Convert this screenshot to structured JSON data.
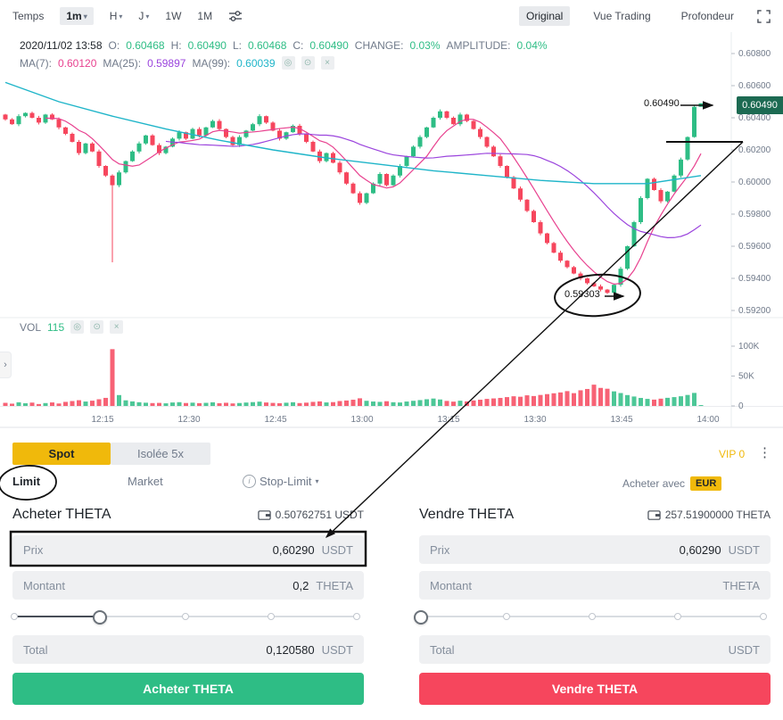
{
  "toolbar": {
    "time_label": "Temps",
    "intervals": [
      "1m",
      "H",
      "J",
      "1W",
      "1M"
    ],
    "view_tabs": [
      "Original",
      "Vue Trading",
      "Profondeur"
    ]
  },
  "ohlc": {
    "datetime": "2020/11/02 13:58",
    "o_label": "O:",
    "o_value": "0.60468",
    "h_label": "H:",
    "h_value": "0.60490",
    "l_label": "L:",
    "l_value": "0.60468",
    "c_label": "C:",
    "c_value": "0.60490",
    "change_label": "CHANGE:",
    "change_value": "0.03%",
    "amplitude_label": "AMPLITUDE:",
    "amplitude_value": "0.04%"
  },
  "ma_legend": {
    "ma7_label": "MA(7):",
    "ma7_value": "0.60120",
    "ma25_label": "MA(25):",
    "ma25_value": "0.59897",
    "ma99_label": "MA(99):",
    "ma99_value": "0.60039"
  },
  "vol_legend": {
    "label": "VOL",
    "value": "115"
  },
  "annotations": {
    "current_price": "0.60490",
    "current_price_badge": "0.60490",
    "marked_low": "0.59303"
  },
  "chart_data": {
    "type": "candlestick",
    "interval": "1m",
    "first_open": 0.6042,
    "closes": [
      0.6039,
      0.6036,
      0.6041,
      0.6043,
      0.604,
      0.6037,
      0.6042,
      0.6039,
      0.6034,
      0.603,
      0.6025,
      0.6018,
      0.6024,
      0.6019,
      0.601,
      0.6004,
      0.5998,
      0.6006,
      0.6013,
      0.6019,
      0.6024,
      0.6029,
      0.6023,
      0.6018,
      0.6022,
      0.6027,
      0.6031,
      0.6027,
      0.6033,
      0.6029,
      0.6034,
      0.6038,
      0.6033,
      0.6028,
      0.6023,
      0.6028,
      0.6032,
      0.6036,
      0.6041,
      0.6037,
      0.6032,
      0.6027,
      0.6031,
      0.6035,
      0.603,
      0.6025,
      0.6019,
      0.6013,
      0.6018,
      0.6012,
      0.6006,
      0.5999,
      0.5993,
      0.5987,
      0.5993,
      0.5999,
      0.6005,
      0.5998,
      0.6004,
      0.601,
      0.6016,
      0.6022,
      0.6028,
      0.6034,
      0.604,
      0.6044,
      0.604,
      0.6036,
      0.6042,
      0.6038,
      0.6033,
      0.6028,
      0.6022,
      0.6016,
      0.601,
      0.6003,
      0.5996,
      0.5989,
      0.5982,
      0.5975,
      0.5968,
      0.5962,
      0.5956,
      0.5951,
      0.5947,
      0.5943,
      0.594,
      0.5937,
      0.5935,
      0.5933,
      0.5931,
      0.5936,
      0.5946,
      0.596,
      0.5975,
      0.599,
      0.6002,
      0.5995,
      0.5988,
      0.5994,
      0.6004,
      0.6014,
      0.6028,
      0.60468,
      0.6049
    ],
    "volumes": [
      5200,
      3800,
      6100,
      4500,
      5600,
      3200,
      4800,
      5900,
      4100,
      6800,
      8200,
      9600,
      7400,
      8800,
      11200,
      13500,
      95000,
      18200,
      9400,
      7600,
      6200,
      5400,
      4800,
      5100,
      4400,
      5800,
      6300,
      4900,
      5500,
      4700,
      5200,
      6100,
      4600,
      5300,
      4200,
      4900,
      5700,
      6400,
      7200,
      5800,
      5100,
      4600,
      5400,
      6200,
      4800,
      5500,
      6800,
      7600,
      5900,
      6400,
      8200,
      9100,
      10400,
      12800,
      8600,
      7400,
      6800,
      7900,
      6200,
      5800,
      7400,
      8600,
      9800,
      11200,
      12400,
      10800,
      8400,
      7200,
      8800,
      7600,
      9200,
      10400,
      11800,
      12600,
      13400,
      14800,
      16200,
      15400,
      17800,
      16600,
      18400,
      19800,
      21200,
      22600,
      24800,
      21400,
      26200,
      28400,
      35600,
      30200,
      28800,
      24400,
      21600,
      18200,
      15800,
      13400,
      11800,
      10600,
      12200,
      13600,
      14800,
      16200,
      18400,
      21800,
      115
    ],
    "wick_overrides": {
      "16": {
        "low": 0.595
      },
      "90": {
        "low": 0.59303
      },
      "104": {
        "high": 0.6049,
        "low": 0.60468
      }
    },
    "ma99_points": [
      [
        0,
        0.6062
      ],
      [
        8,
        0.605
      ],
      [
        16,
        0.6041
      ],
      [
        24,
        0.6033
      ],
      [
        32,
        0.6026
      ],
      [
        40,
        0.602
      ],
      [
        48,
        0.6015
      ],
      [
        56,
        0.6011
      ],
      [
        64,
        0.6007
      ],
      [
        72,
        0.6004
      ],
      [
        80,
        0.6001
      ],
      [
        88,
        0.5999
      ],
      [
        96,
        0.5999
      ],
      [
        104,
        0.6004
      ]
    ],
    "y_axis": [
      "0.60800",
      "0.60600",
      "0.60400",
      "0.60200",
      "0.60000",
      "0.59800",
      "0.59600",
      "0.59400",
      "0.59200"
    ],
    "vol_axis": [
      "100K",
      "50K",
      "0"
    ],
    "x_axis": [
      "12:15",
      "12:30",
      "12:45",
      "13:00",
      "13:15",
      "13:30",
      "13:45",
      "14:00"
    ],
    "colors": {
      "up": "#2EBD85",
      "down": "#F6465D",
      "ma7": "#E8418F",
      "ma25": "#9B44DD",
      "ma99": "#1FB5C9",
      "price_badge_bg": "#1C6A52"
    }
  },
  "panel": {
    "market_tabs": [
      "Spot",
      "Isolée 5x"
    ],
    "vip_label": "VIP 0",
    "order_tabs": [
      "Limit",
      "Market",
      "Stop-Limit"
    ],
    "buy_with_label": "Acheter avec",
    "buy_with_currency": "EUR",
    "colors": {
      "accent": "#F0B90B",
      "buy": "#2EBD85",
      "sell": "#F6465D"
    },
    "buy": {
      "title": "Acheter THETA",
      "balance": "0.50762751 USDT",
      "price_label": "Prix",
      "price_value": "0,60290",
      "price_unit": "USDT",
      "amount_label": "Montant",
      "amount_value": "0,2",
      "amount_unit": "THETA",
      "total_label": "Total",
      "total_value": "0,120580",
      "total_unit": "USDT",
      "button_label": "Acheter THETA",
      "slider_percent": 25
    },
    "sell": {
      "title": "Vendre THETA",
      "balance": "257.51900000 THETA",
      "price_label": "Prix",
      "price_value": "0,60290",
      "price_unit": "USDT",
      "amount_label": "Montant",
      "amount_value": "",
      "amount_unit": "THETA",
      "total_label": "Total",
      "total_value": "",
      "total_unit": "USDT",
      "button_label": "Vendre THETA",
      "slider_percent": 0
    }
  }
}
